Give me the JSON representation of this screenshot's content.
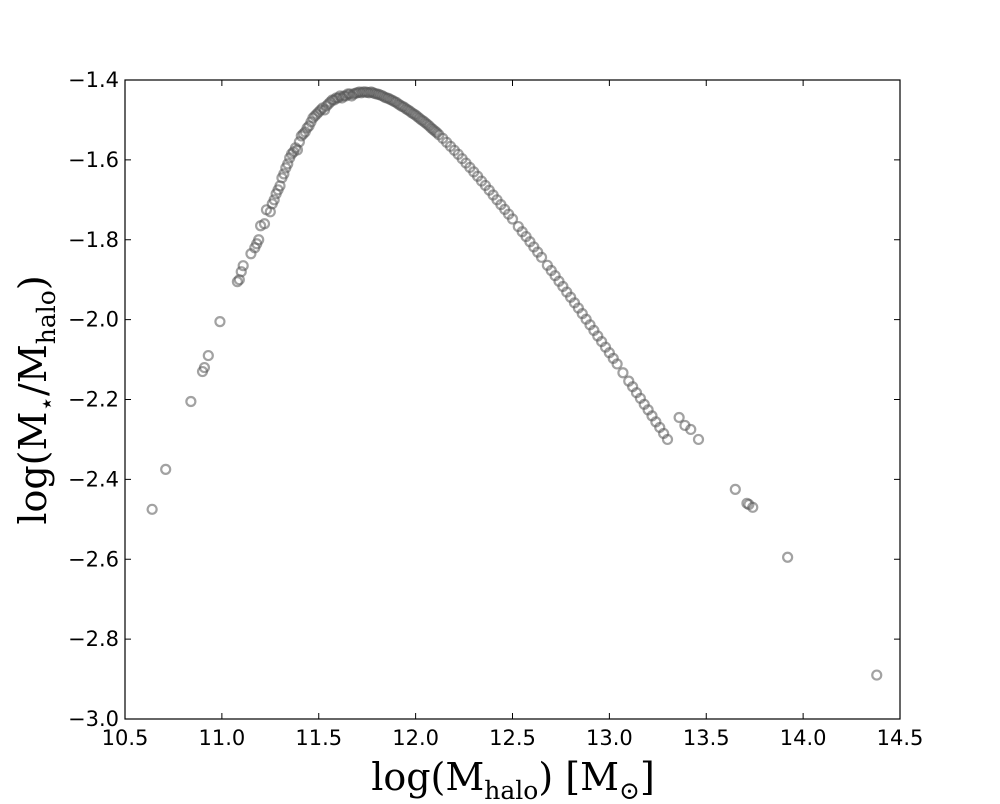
{
  "chart_data": {
    "type": "scatter",
    "title": "",
    "xlabel": {
      "base": "log(M",
      "sub": "halo",
      "tail": ") [M",
      "sub2": "⊙",
      "end": "]"
    },
    "ylabel": {
      "base": "log(M",
      "sub": "⋆",
      "mid": "/M",
      "sub2": "halo",
      "end": ")"
    },
    "xlim": [
      10.5,
      14.5
    ],
    "ylim": [
      -3.0,
      -1.4
    ],
    "xticks": [
      10.5,
      11.0,
      11.5,
      12.0,
      12.5,
      13.0,
      13.5,
      14.0,
      14.5
    ],
    "xtick_labels": [
      "10.5",
      "11.0",
      "11.5",
      "12.0",
      "12.5",
      "13.0",
      "13.5",
      "14.0",
      "14.5"
    ],
    "yticks": [
      -3.0,
      -2.8,
      -2.6,
      -2.4,
      -2.2,
      -2.0,
      -1.8,
      -1.6,
      -1.4
    ],
    "ytick_labels": [
      "−3.0",
      "−2.8",
      "−2.6",
      "−2.4",
      "−2.2",
      "−2.0",
      "−1.8",
      "−1.6",
      "−1.4"
    ],
    "grid": false,
    "marker": "hollow-circle",
    "marker_color": "#555555",
    "series": [
      {
        "x": [
          10.64,
          10.71,
          10.84,
          10.9,
          10.91,
          10.93,
          10.99,
          11.08,
          11.09,
          11.1,
          11.11,
          11.15,
          11.17,
          11.18,
          11.19,
          11.2,
          11.22,
          11.23,
          11.25,
          11.26,
          11.27,
          11.28,
          11.29,
          11.3,
          11.31,
          11.32,
          11.33,
          11.34,
          11.35,
          11.36,
          11.37,
          11.38,
          11.39,
          11.4,
          11.41,
          11.42,
          11.43,
          11.44,
          11.45,
          11.46,
          11.47,
          11.48,
          11.49,
          11.5,
          11.51,
          11.52,
          11.53,
          11.54,
          11.55,
          11.56,
          11.57,
          11.58,
          11.59,
          11.6,
          11.61,
          11.62,
          11.63,
          11.64,
          11.65,
          11.66,
          11.67,
          11.68,
          11.69,
          11.7,
          11.71,
          11.72,
          11.73,
          11.74,
          11.75,
          11.76,
          11.77,
          11.78,
          11.79,
          11.8,
          11.81,
          11.82,
          11.83,
          11.84,
          11.85,
          11.86,
          11.87,
          11.88,
          11.89,
          11.9,
          11.91,
          11.92,
          11.93,
          11.94,
          11.95,
          11.96,
          11.97,
          11.98,
          11.99,
          12.0,
          12.01,
          12.02,
          12.03,
          12.04,
          12.05,
          12.06,
          12.07,
          12.08,
          12.09,
          12.1,
          12.11,
          12.12,
          12.14,
          12.16,
          12.18,
          12.2,
          12.22,
          12.24,
          12.26,
          12.28,
          12.3,
          12.32,
          12.34,
          12.36,
          12.38,
          12.4,
          12.42,
          12.44,
          12.46,
          12.48,
          12.5,
          12.53,
          12.55,
          12.57,
          12.59,
          12.61,
          12.63,
          12.65,
          12.68,
          12.7,
          12.72,
          12.74,
          12.76,
          12.78,
          12.8,
          12.82,
          12.84,
          12.86,
          12.88,
          12.9,
          12.92,
          12.94,
          12.96,
          12.98,
          13.0,
          13.02,
          13.04,
          13.07,
          13.1,
          13.12,
          13.14,
          13.16,
          13.18,
          13.2,
          13.22,
          13.24,
          13.26,
          13.28,
          13.3,
          13.36,
          13.39,
          13.42,
          13.46,
          13.65,
          13.71,
          13.72,
          13.74,
          13.92,
          14.38
        ],
        "y": [
          -2.475,
          -2.375,
          -2.205,
          -2.13,
          -2.12,
          -2.09,
          -2.005,
          -1.905,
          -1.9,
          -1.88,
          -1.865,
          -1.835,
          -1.82,
          -1.81,
          -1.8,
          -1.765,
          -1.76,
          -1.725,
          -1.73,
          -1.71,
          -1.7,
          -1.685,
          -1.675,
          -1.665,
          -1.645,
          -1.635,
          -1.62,
          -1.61,
          -1.595,
          -1.585,
          -1.58,
          -1.57,
          -1.575,
          -1.555,
          -1.54,
          -1.535,
          -1.53,
          -1.52,
          -1.515,
          -1.505,
          -1.495,
          -1.49,
          -1.485,
          -1.48,
          -1.475,
          -1.47,
          -1.475,
          -1.465,
          -1.46,
          -1.455,
          -1.45,
          -1.45,
          -1.445,
          -1.445,
          -1.44,
          -1.445,
          -1.44,
          -1.44,
          -1.435,
          -1.435,
          -1.44,
          -1.435,
          -1.433,
          -1.432,
          -1.43,
          -1.432,
          -1.43,
          -1.43,
          -1.431,
          -1.432,
          -1.43,
          -1.432,
          -1.434,
          -1.435,
          -1.436,
          -1.438,
          -1.44,
          -1.443,
          -1.445,
          -1.446,
          -1.449,
          -1.451,
          -1.454,
          -1.456,
          -1.46,
          -1.463,
          -1.466,
          -1.468,
          -1.472,
          -1.475,
          -1.478,
          -1.482,
          -1.485,
          -1.488,
          -1.492,
          -1.496,
          -1.5,
          -1.503,
          -1.507,
          -1.511,
          -1.515,
          -1.52,
          -1.524,
          -1.528,
          -1.532,
          -1.537,
          -1.546,
          -1.556,
          -1.566,
          -1.576,
          -1.586,
          -1.597,
          -1.608,
          -1.619,
          -1.63,
          -1.641,
          -1.653,
          -1.664,
          -1.676,
          -1.688,
          -1.7,
          -1.712,
          -1.724,
          -1.736,
          -1.748,
          -1.767,
          -1.78,
          -1.792,
          -1.805,
          -1.818,
          -1.831,
          -1.844,
          -1.864,
          -1.877,
          -1.89,
          -1.904,
          -1.917,
          -1.931,
          -1.944,
          -1.958,
          -1.971,
          -1.985,
          -1.999,
          -2.013,
          -2.027,
          -2.041,
          -2.055,
          -2.069,
          -2.083,
          -2.097,
          -2.111,
          -2.133,
          -2.154,
          -2.168,
          -2.183,
          -2.197,
          -2.212,
          -2.226,
          -2.241,
          -2.256,
          -2.27,
          -2.285,
          -2.3,
          -2.245,
          -2.265,
          -2.275,
          -2.3,
          -2.425,
          -2.46,
          -2.463,
          -2.47,
          -2.595,
          -2.89
        ]
      }
    ]
  }
}
